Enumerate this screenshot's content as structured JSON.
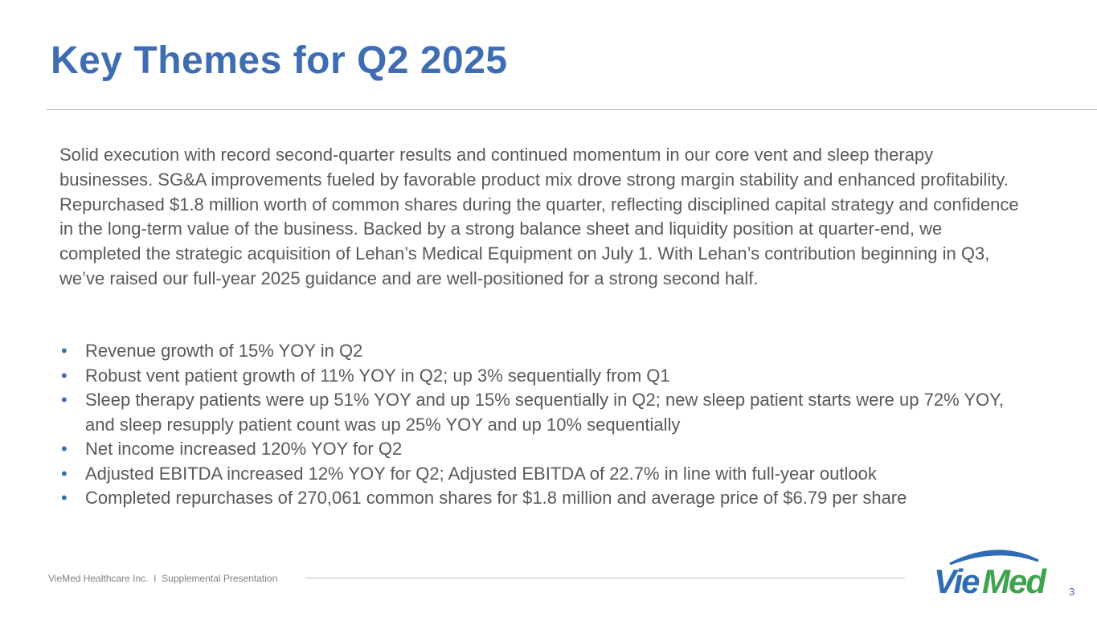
{
  "title": "Key Themes for Q2 2025",
  "intro": "Solid execution with record second-quarter results and continued momentum in our core vent and sleep therapy businesses. SG&A improvements fueled by favorable product mix drove strong margin stability and enhanced profitability. Repurchased $1.8 million worth of common shares during the quarter, reflecting disciplined capital strategy and confidence in the long-term value of the business. Backed by a strong balance sheet and liquidity position at quarter-end, we completed the strategic acquisition of Lehan’s Medical Equipment on July 1. With Lehan’s contribution beginning in Q3, we’ve raised our full-year 2025 guidance and are well-positioned for a strong second half.",
  "bullets": [
    "Revenue growth of 15% YOY in Q2",
    "Robust vent patient growth of 11% YOY in Q2; up 3% sequentially from Q1",
    "Sleep therapy patients were up 51% YOY and up 15% sequentially in Q2; new sleep patient starts were up 72% YOY, and sleep resupply patient count was up 25% YOY and up 10% sequentially",
    "Net income increased 120% YOY for Q2",
    "Adjusted EBITDA increased 12% YOY for Q2; Adjusted EBITDA of 22.7% in line with full-year outlook",
    "Completed repurchases of 270,061 common shares for $1.8 million and average price of $6.79 per share"
  ],
  "footer": "VieMed Healthcare Inc.  I  Supplemental Presentation",
  "logo_text": "VieMed",
  "page_number": "3",
  "colors": {
    "accent": "#3f6db3",
    "logo_green": "#3fa34d",
    "logo_blue": "#2f6cb8",
    "body_text": "#595959"
  }
}
